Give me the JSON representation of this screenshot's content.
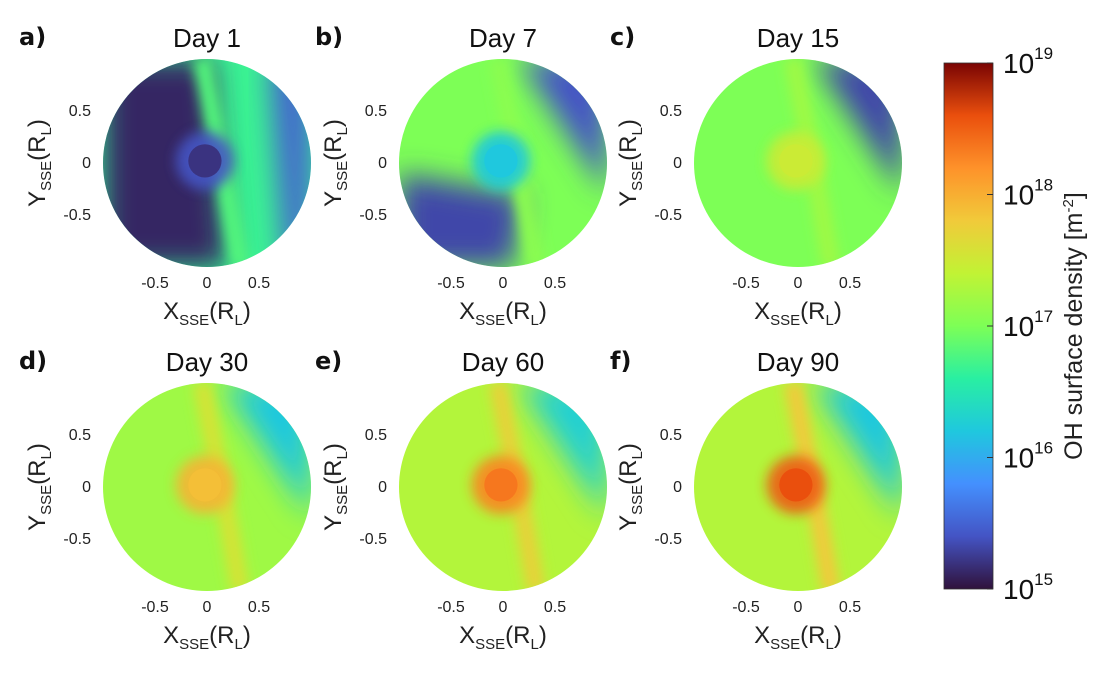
{
  "chart_data": {
    "type": "heatmap",
    "colormap": "turbo",
    "scale": "log",
    "xlabel": {
      "main": "X",
      "sub": "SSE",
      "paren_open": "(R",
      "unit_sub": "L",
      "paren_close": ")"
    },
    "ylabel": {
      "main": "Y",
      "sub": "SSE",
      "paren_open": "(R",
      "unit_sub": "L",
      "paren_close": ")"
    },
    "xlim": [
      -1,
      1
    ],
    "ylim": [
      -1,
      1
    ],
    "xticks": [
      {
        "value": -0.5,
        "label": "-0.5"
      },
      {
        "value": 0,
        "label": "0"
      },
      {
        "value": 0.5,
        "label": "0.5"
      }
    ],
    "yticks": [
      {
        "value": 0.5,
        "label": "0.5"
      },
      {
        "value": 0,
        "label": "0"
      },
      {
        "value": -0.5,
        "label": "-0.5"
      }
    ],
    "panels": [
      {
        "letter": "a)",
        "title": "Day 1",
        "center_level": 0.1,
        "background_level": 0.42,
        "dark_side_level": 0.03,
        "tail_level": 0.45,
        "core_level": 0.05
      },
      {
        "letter": "b)",
        "title": "Day 7",
        "center_level": 0.3,
        "background_level": 0.5,
        "dark_side_level": 0.1,
        "tail_level": 0.52,
        "core_level": 0.3
      },
      {
        "letter": "c)",
        "title": "Day 15",
        "center_level": 0.62,
        "background_level": 0.5,
        "dark_side_level": 0.08,
        "tail_level": 0.55,
        "core_level": 0.62
      },
      {
        "letter": "d)",
        "title": "Day 30",
        "center_level": 0.74,
        "background_level": 0.55,
        "dark_side_level": 0.3,
        "tail_level": 0.64,
        "core_level": 0.72
      },
      {
        "letter": "e)",
        "title": "Day 60",
        "center_level": 0.82,
        "background_level": 0.58,
        "dark_side_level": 0.32,
        "tail_level": 0.68,
        "core_level": 0.84
      },
      {
        "letter": "f)",
        "title": "Day 90",
        "center_level": 0.88,
        "background_level": 0.58,
        "dark_side_level": 0.3,
        "tail_level": 0.7,
        "core_level": 0.9
      }
    ],
    "colorbar": {
      "label": "OH surface density [m",
      "label_sup": "-2",
      "label_close": "]",
      "range_exponents": [
        15,
        19
      ],
      "ticks": [
        {
          "base": "10",
          "exp": "19"
        },
        {
          "base": "10",
          "exp": "18"
        },
        {
          "base": "10",
          "exp": "17"
        },
        {
          "base": "10",
          "exp": "16"
        },
        {
          "base": "10",
          "exp": "15"
        }
      ]
    }
  }
}
